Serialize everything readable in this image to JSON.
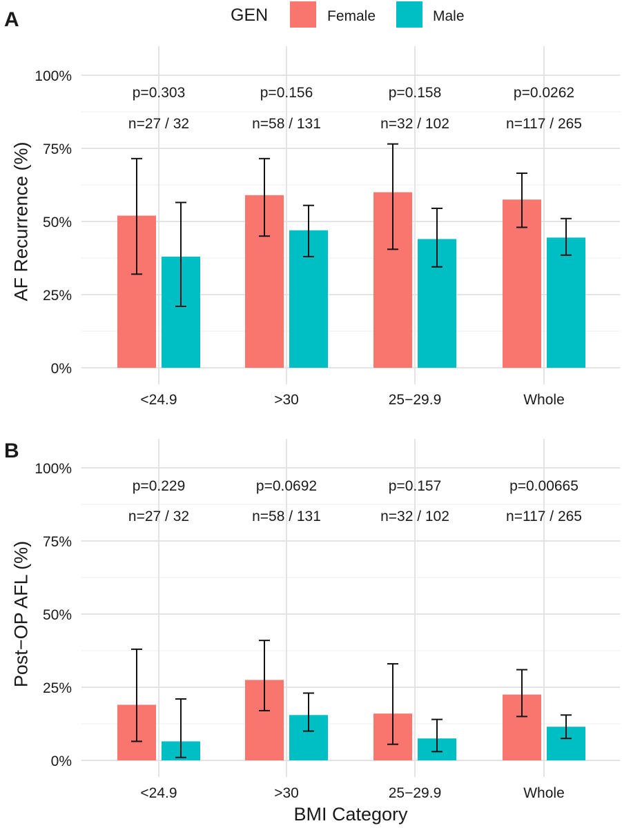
{
  "legend": {
    "title": "GEN",
    "items": [
      {
        "label": "Female",
        "color": "#F8766D"
      },
      {
        "label": "Male",
        "color": "#00BFC4"
      }
    ]
  },
  "x_title": "BMI Category",
  "chart_data": [
    {
      "type": "bar",
      "panel_label": "A",
      "ylabel": "AF Recurrence (%)",
      "ylim": [
        0,
        100
      ],
      "yticks": [
        "0%",
        "25%",
        "50%",
        "75%",
        "100%"
      ],
      "grid": true,
      "categories": [
        "<24.9",
        ">30",
        "25−29.9",
        "Whole"
      ],
      "series": [
        {
          "name": "Female",
          "color": "#F8766D",
          "values": [
            52,
            59,
            60,
            57.5
          ],
          "ci_low": [
            32,
            45,
            40.5,
            48
          ],
          "ci_high": [
            71.5,
            71.5,
            76.5,
            66.5
          ]
        },
        {
          "name": "Male",
          "color": "#00BFC4",
          "values": [
            38,
            47,
            44,
            44.5
          ],
          "ci_low": [
            21,
            38,
            34.5,
            38.5
          ],
          "ci_high": [
            56.5,
            55.5,
            54.5,
            51
          ]
        }
      ],
      "annotations": [
        {
          "p": "p=0.303",
          "n": "n=27 / 32"
        },
        {
          "p": "p=0.156",
          "n": "n=58 / 131"
        },
        {
          "p": "p=0.158",
          "n": "n=32 / 102"
        },
        {
          "p": "p=0.0262",
          "n": "n=117 / 265"
        }
      ]
    },
    {
      "type": "bar",
      "panel_label": "B",
      "ylabel": "Post−OP AFL (%)",
      "ylim": [
        0,
        100
      ],
      "yticks": [
        "0%",
        "25%",
        "50%",
        "75%",
        "100%"
      ],
      "grid": true,
      "categories": [
        "<24.9",
        ">30",
        "25−29.9",
        "Whole"
      ],
      "series": [
        {
          "name": "Female",
          "color": "#F8766D",
          "values": [
            19,
            27.5,
            16,
            22.5
          ],
          "ci_low": [
            6.5,
            17,
            5.5,
            15
          ],
          "ci_high": [
            38,
            41,
            33,
            31
          ]
        },
        {
          "name": "Male",
          "color": "#00BFC4",
          "values": [
            6.5,
            15.5,
            7.5,
            11.5
          ],
          "ci_low": [
            1,
            10,
            3,
            7.5
          ],
          "ci_high": [
            21,
            23,
            14,
            15.5
          ]
        }
      ],
      "annotations": [
        {
          "p": "p=0.229",
          "n": "n=27 / 32"
        },
        {
          "p": "p=0.0692",
          "n": "n=58 / 131"
        },
        {
          "p": "p=0.157",
          "n": "n=32 / 102"
        },
        {
          "p": "p=0.00665",
          "n": "n=117 / 265"
        }
      ]
    }
  ]
}
